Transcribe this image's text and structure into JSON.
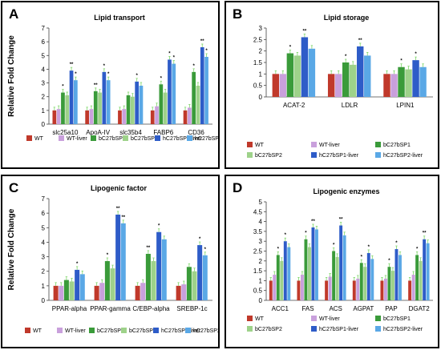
{
  "panels": [
    {
      "letter": "A",
      "chart_data": {
        "type": "bar",
        "title": "Lipid transport",
        "ylabel": "Relative Fold Change",
        "xlabel": "",
        "ylim": [
          0,
          7
        ],
        "yticks": [
          "0",
          "1",
          "2",
          "3",
          "4",
          "5",
          "6",
          "7"
        ],
        "categories": [
          "slc25a10",
          "ApoA-IV",
          "slc35b4",
          "FABP6",
          "CD36"
        ],
        "series": [
          {
            "name": "WT",
            "color": "#c0392b",
            "values": [
              1.0,
              1.0,
              1.0,
              1.0,
              1.0
            ]
          },
          {
            "name": "WT-liver",
            "color": "#c9a0dc",
            "values": [
              1.1,
              1.1,
              1.1,
              1.3,
              1.2
            ]
          },
          {
            "name": "bC27bSP1",
            "color": "#3a9b3a",
            "values": [
              2.3,
              2.4,
              2.1,
              2.9,
              3.8
            ]
          },
          {
            "name": "bC27bSP2",
            "color": "#9ed28a",
            "values": [
              2.1,
              2.3,
              2.0,
              2.3,
              2.8
            ]
          },
          {
            "name": "hC27bSP1-liver",
            "color": "#2e5cc8",
            "values": [
              3.9,
              3.8,
              3.1,
              4.7,
              5.6
            ]
          },
          {
            "name": "hC27bSP2-liver",
            "color": "#5aa8e6",
            "values": [
              3.2,
              3.2,
              2.8,
              4.4,
              4.9
            ]
          }
        ],
        "significance": [
          {
            "category": "slc25a10",
            "series": "bC27bSP1",
            "mark": "*"
          },
          {
            "category": "slc25a10",
            "series": "hC27bSP1-liver",
            "mark": "**"
          },
          {
            "category": "slc25a10",
            "series": "hC27bSP2-liver",
            "mark": "*"
          },
          {
            "category": "ApoA-IV",
            "series": "bC27bSP1",
            "mark": "**"
          },
          {
            "category": "ApoA-IV",
            "series": "hC27bSP1-liver",
            "mark": "*"
          },
          {
            "category": "ApoA-IV",
            "series": "hC27bSP2-liver",
            "mark": "*"
          },
          {
            "category": "slc35b4",
            "series": "hC27bSP1-liver",
            "mark": "*"
          },
          {
            "category": "FABP6",
            "series": "bC27bSP1",
            "mark": "*"
          },
          {
            "category": "FABP6",
            "series": "hC27bSP1-liver",
            "mark": "*"
          },
          {
            "category": "FABP6",
            "series": "hC27bSP2-liver",
            "mark": "*"
          },
          {
            "category": "CD36",
            "series": "bC27bSP1",
            "mark": "*"
          },
          {
            "category": "CD36",
            "series": "hC27bSP1-liver",
            "mark": "**"
          },
          {
            "category": "CD36",
            "series": "hC27bSP2-liver",
            "mark": "*"
          }
        ],
        "legend": {
          "position": "bottom",
          "columns": 6
        },
        "grid": false
      }
    },
    {
      "letter": "B",
      "chart_data": {
        "type": "bar",
        "title": "Lipid storage",
        "ylabel": "Relative Fold Change",
        "xlabel": "",
        "ylim": [
          0,
          3
        ],
        "yticks": [
          "0",
          "0.5",
          "1",
          "1.5",
          "2",
          "2.5",
          "3"
        ],
        "categories": [
          "ACAT-2",
          "LDLR",
          "LPIN1"
        ],
        "series": [
          {
            "name": "WT",
            "color": "#c0392b",
            "values": [
              1.0,
              1.0,
              1.0
            ]
          },
          {
            "name": "WT-liver",
            "color": "#c9a0dc",
            "values": [
              1.0,
              1.0,
              1.0
            ]
          },
          {
            "name": "bC27bSP1",
            "color": "#3a9b3a",
            "values": [
              1.9,
              1.5,
              1.3
            ]
          },
          {
            "name": "bC27bSP2",
            "color": "#9ed28a",
            "values": [
              1.8,
              1.4,
              1.2
            ]
          },
          {
            "name": "hC27bSP1-liver",
            "color": "#2e5cc8",
            "values": [
              2.6,
              2.2,
              1.6
            ]
          },
          {
            "name": "hC27bSP2-liver",
            "color": "#5aa8e6",
            "values": [
              2.1,
              1.8,
              1.3
            ]
          }
        ],
        "significance": [
          {
            "category": "ACAT-2",
            "series": "bC27bSP1",
            "mark": "*"
          },
          {
            "category": "ACAT-2",
            "series": "hC27bSP1-liver",
            "mark": "**"
          },
          {
            "category": "LDLR",
            "series": "bC27bSP1",
            "mark": "*"
          },
          {
            "category": "LDLR",
            "series": "hC27bSP1-liver",
            "mark": "**"
          },
          {
            "category": "LPIN1",
            "series": "bC27bSP1",
            "mark": "*"
          },
          {
            "category": "LPIN1",
            "series": "hC27bSP1-liver",
            "mark": "*"
          }
        ],
        "legend": {
          "position": "bottom",
          "columns": 3
        },
        "grid": false
      }
    },
    {
      "letter": "C",
      "chart_data": {
        "type": "bar",
        "title": "Lipogenic factor",
        "ylabel": "Relative Fold Change",
        "xlabel": "",
        "ylim": [
          0,
          7
        ],
        "yticks": [
          "0",
          "1",
          "2",
          "3",
          "4",
          "5",
          "6",
          "7"
        ],
        "categories": [
          "PPAR-alpha",
          "PPAR-gamma",
          "C/EBP-alpha",
          "SREBP-1c"
        ],
        "series": [
          {
            "name": "WT",
            "color": "#c0392b",
            "values": [
              1.0,
              1.0,
              1.0,
              1.0
            ]
          },
          {
            "name": "WT-liver",
            "color": "#c9a0dc",
            "values": [
              1.0,
              1.2,
              1.2,
              1.1
            ]
          },
          {
            "name": "bC27bSP1",
            "color": "#3a9b3a",
            "values": [
              1.4,
              2.7,
              3.2,
              2.3
            ]
          },
          {
            "name": "bC27bSP2",
            "color": "#9ed28a",
            "values": [
              1.3,
              2.2,
              2.7,
              2.0
            ]
          },
          {
            "name": "hC27bSP1-liver",
            "color": "#2e5cc8",
            "values": [
              2.1,
              5.9,
              4.7,
              3.8
            ]
          },
          {
            "name": "hC27bSP2-liver",
            "color": "#5aa8e6",
            "values": [
              1.8,
              5.3,
              4.2,
              3.1
            ]
          }
        ],
        "significance": [
          {
            "category": "PPAR-alpha",
            "series": "hC27bSP1-liver",
            "mark": "*"
          },
          {
            "category": "PPAR-gamma",
            "series": "bC27bSP1",
            "mark": "*"
          },
          {
            "category": "PPAR-gamma",
            "series": "hC27bSP1-liver",
            "mark": "**"
          },
          {
            "category": "PPAR-gamma",
            "series": "hC27bSP2-liver",
            "mark": "**"
          },
          {
            "category": "C/EBP-alpha",
            "series": "bC27bSP1",
            "mark": "**"
          },
          {
            "category": "C/EBP-alpha",
            "series": "hC27bSP1-liver",
            "mark": "*"
          },
          {
            "category": "SREBP-1c",
            "series": "hC27bSP1-liver",
            "mark": "*"
          },
          {
            "category": "SREBP-1c",
            "series": "hC27bSP2-liver",
            "mark": "*"
          }
        ],
        "legend": {
          "position": "bottom",
          "columns": 6
        },
        "grid": false
      }
    },
    {
      "letter": "D",
      "chart_data": {
        "type": "bar",
        "title": "Lipogenic enzymes",
        "ylabel": "Relative Fold Change",
        "xlabel": "",
        "ylim": [
          0,
          5
        ],
        "yticks": [
          "0",
          "0.5",
          "1",
          "1.5",
          "2",
          "2.5",
          "3",
          "3.5",
          "4",
          "4.5",
          "5"
        ],
        "categories": [
          "ACC1",
          "FAS",
          "ACS",
          "AGPAT",
          "PAP",
          "DGAT2"
        ],
        "series": [
          {
            "name": "WT",
            "color": "#c0392b",
            "values": [
              1.0,
              1.0,
              1.0,
              1.0,
              1.0,
              1.0
            ]
          },
          {
            "name": "WT-liver",
            "color": "#c9a0dc",
            "values": [
              1.3,
              1.3,
              1.2,
              1.1,
              1.1,
              1.3
            ]
          },
          {
            "name": "bC27bSP1",
            "color": "#3a9b3a",
            "values": [
              2.3,
              3.1,
              2.5,
              1.9,
              1.7,
              2.3
            ]
          },
          {
            "name": "bC27bSP2",
            "color": "#9ed28a",
            "values": [
              2.0,
              2.7,
              2.2,
              1.7,
              1.5,
              2.0
            ]
          },
          {
            "name": "hC27bSP1-liver",
            "color": "#2e5cc8",
            "values": [
              3.0,
              3.7,
              3.8,
              2.4,
              2.6,
              3.1
            ]
          },
          {
            "name": "hC27bSP2-liver",
            "color": "#5aa8e6",
            "values": [
              2.7,
              3.6,
              3.3,
              2.1,
              2.3,
              2.9
            ]
          }
        ],
        "significance": [
          {
            "category": "ACC1",
            "series": "bC27bSP1",
            "mark": "*"
          },
          {
            "category": "ACC1",
            "series": "hC27bSP1-liver",
            "mark": "*"
          },
          {
            "category": "FAS",
            "series": "bC27bSP1",
            "mark": "*"
          },
          {
            "category": "FAS",
            "series": "hC27bSP1-liver",
            "mark": "**"
          },
          {
            "category": "ACS",
            "series": "bC27bSP1",
            "mark": "*"
          },
          {
            "category": "ACS",
            "series": "hC27bSP1-liver",
            "mark": "**"
          },
          {
            "category": "AGPAT",
            "series": "bC27bSP1",
            "mark": "*"
          },
          {
            "category": "AGPAT",
            "series": "hC27bSP1-liver",
            "mark": "*"
          },
          {
            "category": "PAP",
            "series": "bC27bSP1",
            "mark": "*"
          },
          {
            "category": "PAP",
            "series": "hC27bSP1-liver",
            "mark": "*"
          },
          {
            "category": "DGAT2",
            "series": "bC27bSP1",
            "mark": "*"
          },
          {
            "category": "DGAT2",
            "series": "hC27bSP1-liver",
            "mark": "**"
          }
        ],
        "legend": {
          "position": "bottom",
          "columns": 3
        },
        "grid": false
      }
    }
  ]
}
